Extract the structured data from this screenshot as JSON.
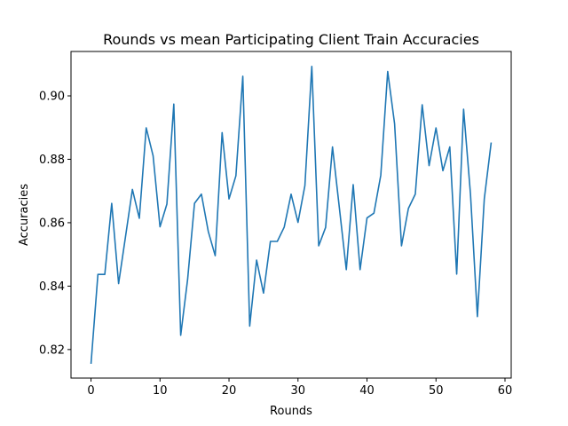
{
  "chart_data": {
    "type": "line",
    "title": "Rounds vs mean Participating Client Train Accuracies",
    "xlabel": "Rounds",
    "ylabel": "Accuracies",
    "xlim": [
      -2.9,
      60.9
    ],
    "ylim": [
      0.811,
      0.914
    ],
    "x_ticks": [
      0,
      10,
      20,
      30,
      40,
      50,
      60
    ],
    "x_tick_labels": [
      "0",
      "10",
      "20",
      "30",
      "40",
      "50",
      "60"
    ],
    "y_ticks": [
      0.82,
      0.84,
      0.86,
      0.88,
      0.9
    ],
    "y_tick_labels": [
      "0.82",
      "0.84",
      "0.86",
      "0.88",
      "0.90"
    ],
    "grid": false,
    "series": [
      {
        "color": "#1f77b4",
        "x": [
          0,
          1,
          2,
          3,
          4,
          5,
          6,
          7,
          8,
          9,
          10,
          11,
          12,
          13,
          14,
          15,
          16,
          17,
          18,
          19,
          20,
          21,
          22,
          23,
          24,
          25,
          26,
          27,
          28,
          29,
          30,
          31,
          32,
          33,
          34,
          35,
          36,
          37,
          38,
          39,
          40,
          41,
          42,
          43,
          44,
          45,
          46,
          47,
          48,
          49,
          50,
          51,
          52,
          53,
          54,
          55,
          56,
          57,
          58
        ],
        "values": [
          0.8155,
          0.8437,
          0.8437,
          0.8661,
          0.8408,
          0.8556,
          0.8705,
          0.8614,
          0.8899,
          0.8811,
          0.8587,
          0.8659,
          0.8974,
          0.8245,
          0.8421,
          0.8661,
          0.869,
          0.8572,
          0.8496,
          0.8884,
          0.8675,
          0.8748,
          0.9062,
          0.8274,
          0.8482,
          0.8378,
          0.8541,
          0.8541,
          0.8586,
          0.869,
          0.8601,
          0.8717,
          0.9093,
          0.8527,
          0.8585,
          0.8839,
          0.8646,
          0.8452,
          0.872,
          0.8452,
          0.8615,
          0.863,
          0.875,
          0.9077,
          0.8912,
          0.8527,
          0.8645,
          0.869,
          0.8972,
          0.878,
          0.8899,
          0.8764,
          0.8839,
          0.8438,
          0.8958,
          0.869,
          0.8304,
          0.8675,
          0.8853
        ]
      }
    ]
  }
}
